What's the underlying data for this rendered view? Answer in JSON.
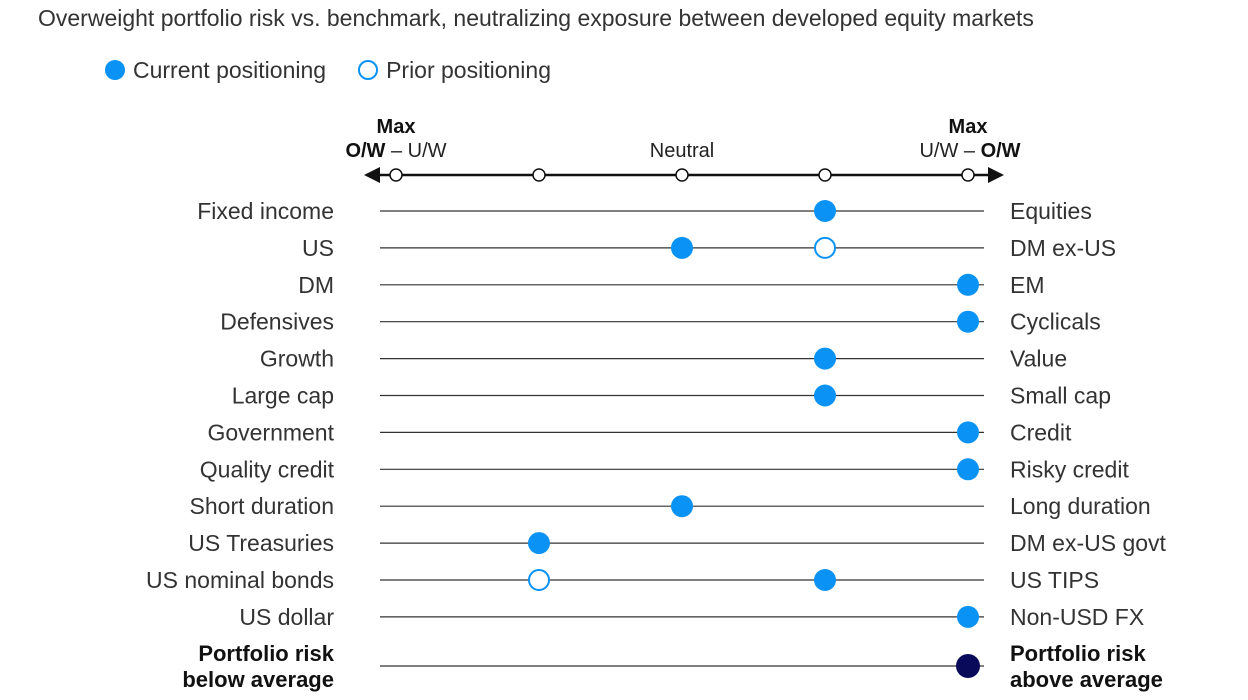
{
  "chart_data": {
    "type": "scatter",
    "title": "Overweight portfolio risk vs. benchmark, neutralizing exposure between developed equity markets",
    "legend": [
      {
        "label": "Current positioning",
        "style": "filled",
        "color": "#0a93f5"
      },
      {
        "label": "Prior positioning",
        "style": "hollow",
        "color": "#0a93f5"
      }
    ],
    "axis": {
      "range": [
        -2,
        2
      ],
      "ticks": [
        -2,
        -1,
        0,
        1,
        2
      ],
      "left_max": {
        "line1": "Max",
        "line2_bold": "O/W",
        "line2_rest": " – U/W"
      },
      "center": "Neutral",
      "right_max": {
        "line1": "Max",
        "line2_rest": "U/W – ",
        "line2_bold": "O/W"
      }
    },
    "rows": [
      {
        "left": "Fixed income",
        "right": "Equities",
        "current": 1,
        "prior": null
      },
      {
        "left": "US",
        "right": "DM ex-US",
        "current": 0,
        "prior": 1
      },
      {
        "left": "DM",
        "right": "EM",
        "current": 2,
        "prior": null
      },
      {
        "left": "Defensives",
        "right": "Cyclicals",
        "current": 2,
        "prior": null
      },
      {
        "left": "Growth",
        "right": "Value",
        "current": 1,
        "prior": null
      },
      {
        "left": "Large cap",
        "right": "Small cap",
        "current": 1,
        "prior": null
      },
      {
        "left": "Government",
        "right": "Credit",
        "current": 2,
        "prior": null
      },
      {
        "left": "Quality credit",
        "right": "Risky credit",
        "current": 2,
        "prior": null
      },
      {
        "left": "Short duration",
        "right": "Long duration",
        "current": 0,
        "prior": null
      },
      {
        "left": "US Treasuries",
        "right": "DM ex-US govt",
        "current": -1,
        "prior": null
      },
      {
        "left": "US nominal bonds",
        "right": "US TIPS",
        "current": 1,
        "prior": -1
      },
      {
        "left": "US dollar",
        "right": "Non-USD FX",
        "current": 2,
        "prior": null
      }
    ],
    "summary_row": {
      "left": [
        "Portfolio risk",
        "below average"
      ],
      "right": [
        "Portfolio risk",
        "above average"
      ],
      "current": 2,
      "color": "#0a0a5a"
    }
  }
}
